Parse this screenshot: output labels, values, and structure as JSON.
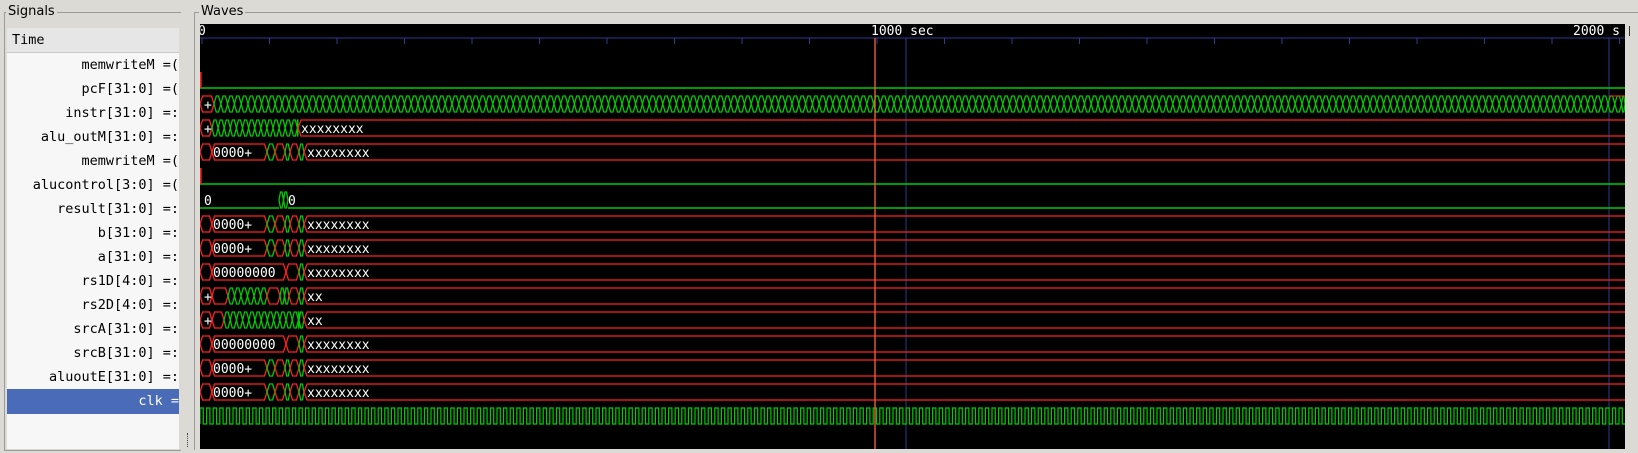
{
  "signals_panel": {
    "title": "Signals",
    "header": "Time",
    "rows": [
      {
        "label": "memwriteM =(",
        "selected": false
      },
      {
        "label": "pcF[31:0] =(",
        "selected": false
      },
      {
        "label": "instr[31:0] =:",
        "selected": false
      },
      {
        "label": "alu_outM[31:0] =:",
        "selected": false
      },
      {
        "label": "memwriteM =(",
        "selected": false
      },
      {
        "label": "alucontrol[3:0] =(",
        "selected": false
      },
      {
        "label": "result[31:0] =:",
        "selected": false
      },
      {
        "label": "b[31:0] =:",
        "selected": false
      },
      {
        "label": "a[31:0] =:",
        "selected": false
      },
      {
        "label": "rs1D[4:0] =:",
        "selected": false
      },
      {
        "label": "rs2D[4:0] =:",
        "selected": false
      },
      {
        "label": "srcA[31:0] =:",
        "selected": false
      },
      {
        "label": "srcB[31:0] =:",
        "selected": false
      },
      {
        "label": "aluoutE[31:0] =:",
        "selected": false
      },
      {
        "label": "clk =",
        "selected": true
      }
    ]
  },
  "waves_panel": {
    "title": "Waves",
    "time_labels": {
      "start": "0",
      "mid": "1000 sec",
      "end": "2000 s"
    },
    "tracks": [
      {
        "kind": "bit",
        "level": 0
      },
      {
        "kind": "bus",
        "burst_end": 12,
        "burst": "dense",
        "start": "+",
        "tail": ""
      },
      {
        "kind": "bus",
        "burst_end": 100,
        "burst": "ovals",
        "start": "+",
        "tail": "xxxxxxxx"
      },
      {
        "kind": "bus",
        "burst_end": 110,
        "burst": "mixed",
        "start": "0000+",
        "tail": "xxxxxxxx"
      },
      {
        "kind": "bit",
        "level": 0
      },
      {
        "kind": "nibble",
        "start": "0",
        "after": "0"
      },
      {
        "kind": "bus",
        "burst_end": 110,
        "burst": "mixed",
        "start": "0000+",
        "tail": "xxxxxxxx"
      },
      {
        "kind": "bus",
        "burst_end": 110,
        "burst": "mixed",
        "start": "0000+",
        "tail": "xxxxxxxx"
      },
      {
        "kind": "bus",
        "burst_end": 110,
        "burst": "a",
        "start": "00000000",
        "tail": "xxxxxxxx"
      },
      {
        "kind": "bus",
        "burst_end": 110,
        "burst": "rs",
        "start": "+",
        "tail": "xx"
      },
      {
        "kind": "bus",
        "burst_end": 110,
        "burst": "rs2",
        "start": "+",
        "tail": "xx"
      },
      {
        "kind": "bus",
        "burst_end": 110,
        "burst": "a",
        "start": "00000000",
        "tail": "xxxxxxxx"
      },
      {
        "kind": "bus",
        "burst_end": 110,
        "burst": "mixed",
        "start": "0000+",
        "tail": "xxxxxxxx"
      },
      {
        "kind": "bus",
        "burst_end": 110,
        "burst": "mixed",
        "start": "0000+",
        "tail": "xxxxxxxx"
      },
      {
        "kind": "clock"
      }
    ],
    "colors": {
      "background": "#000000",
      "wave": "#00cc00",
      "unknown": "#ff2020",
      "text": "#ffffff",
      "cursor": "#ff6040",
      "grid": "#2a3d8f"
    }
  }
}
